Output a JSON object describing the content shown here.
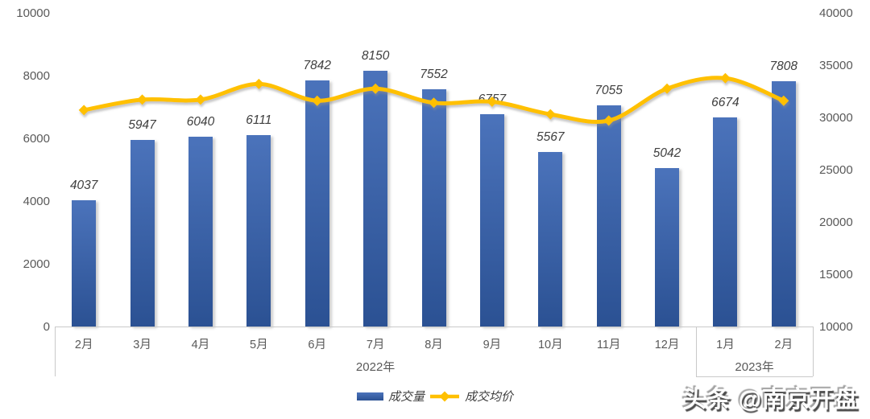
{
  "chart_data": {
    "type": "combo-bar-line",
    "title": "",
    "categories": [
      "2月",
      "3月",
      "4月",
      "5月",
      "6月",
      "7月",
      "8月",
      "9月",
      "10月",
      "11月",
      "12月",
      "1月",
      "2月"
    ],
    "category_groups": [
      {
        "label": "2022年",
        "start": 0,
        "end": 10
      },
      {
        "label": "2023年",
        "start": 11,
        "end": 12
      }
    ],
    "series": [
      {
        "name": "成交量",
        "type": "bar",
        "axis": "left",
        "values": [
          4037,
          5947,
          6040,
          6111,
          7842,
          8150,
          7552,
          6757,
          5567,
          7055,
          5042,
          6674,
          7808
        ]
      },
      {
        "name": "成交均价",
        "type": "line",
        "axis": "right",
        "estimated": true,
        "values": [
          30700,
          31700,
          31700,
          33200,
          31600,
          32750,
          31400,
          31500,
          30300,
          29700,
          32750,
          33750,
          31600
        ]
      }
    ],
    "left_axis": {
      "min": 0,
      "max": 10000,
      "step": 2000,
      "ticks": [
        "0",
        "2000",
        "4000",
        "6000",
        "8000",
        "10000"
      ]
    },
    "right_axis": {
      "min": 10000,
      "max": 40000,
      "step": 5000,
      "ticks": [
        "10000",
        "15000",
        "20000",
        "25000",
        "30000",
        "35000",
        "40000"
      ]
    },
    "grid": false,
    "legend_position": "bottom",
    "colors": {
      "bar_top": "#4B73BB",
      "bar_bottom": "#2B5193",
      "line": "#FFC000",
      "axis_text": "#595959",
      "data_label_text": "#3F3F3F",
      "frame": "#C9C9C9"
    }
  },
  "watermark": {
    "text": "头条 @南京开盘"
  }
}
